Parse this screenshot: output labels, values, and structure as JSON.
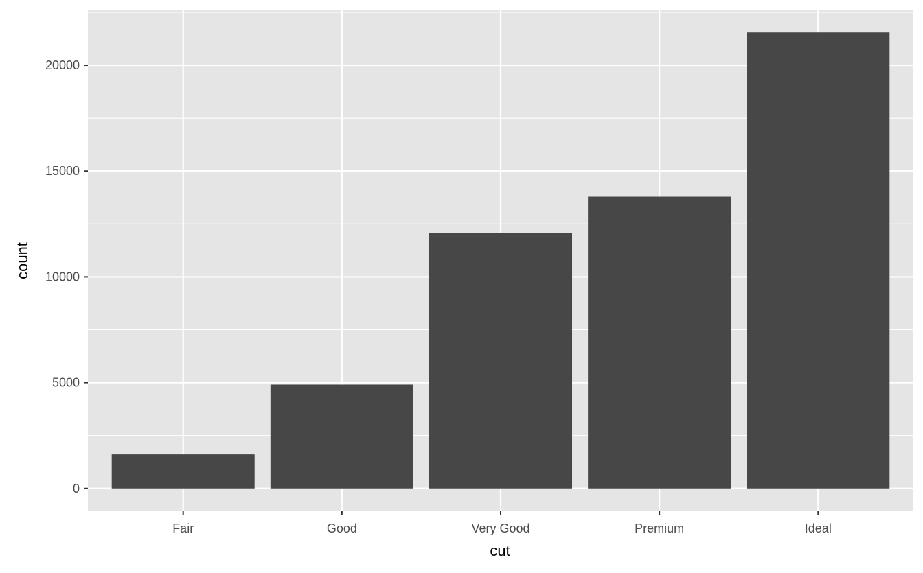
{
  "chart_data": {
    "type": "bar",
    "categories": [
      "Fair",
      "Good",
      "Very Good",
      "Premium",
      "Ideal"
    ],
    "values": [
      1610,
      4906,
      12082,
      13791,
      21551
    ],
    "xlabel": "cut",
    "ylabel": "count",
    "ylim": [
      -1077.55,
      22628.55
    ],
    "yticks": [
      0,
      5000,
      10000,
      15000,
      20000
    ],
    "grid": true,
    "colors": {
      "bar": "#474747",
      "panel": "#E5E5E5",
      "grid": "#FFFFFF",
      "tick_text": "#4D4D4D"
    }
  }
}
